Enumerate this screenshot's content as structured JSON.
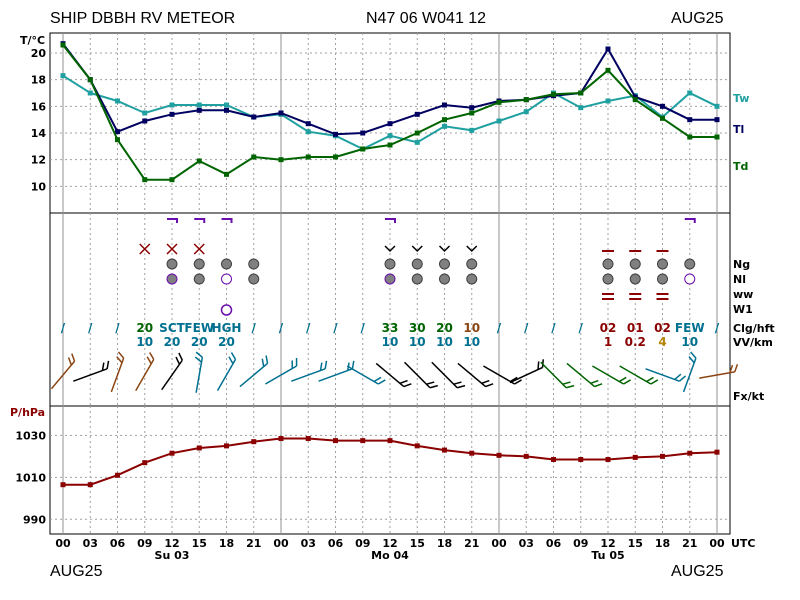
{
  "header": {
    "station": "SHIP DBBH RV METEOR",
    "position": "N47 06 W041 12",
    "month_left": "AUG25",
    "month_right": "AUG25",
    "footer_left": "AUG25",
    "footer_right": "AUG25"
  },
  "x_axis": {
    "hours": [
      "00",
      "03",
      "06",
      "09",
      "12",
      "15",
      "18",
      "21",
      "00",
      "03",
      "06",
      "09",
      "12",
      "15",
      "18",
      "21",
      "00",
      "03",
      "06",
      "09",
      "12",
      "15",
      "18",
      "21",
      "00"
    ],
    "utc_label": "UTC",
    "days": [
      {
        "label": "Su 03",
        "index": 4
      },
      {
        "label": "Mo 04",
        "index": 12
      },
      {
        "label": "Tu 05",
        "index": 20
      }
    ]
  },
  "temp_panel": {
    "unit_label": "T/°C",
    "yticks": [
      "20",
      "18",
      "16",
      "14",
      "12",
      "10"
    ],
    "legend": {
      "tw": "Tw",
      "tl": "Tl",
      "td": "Td"
    }
  },
  "middle_panel": {
    "row_labels": [
      "Ng",
      "Nl",
      "ww",
      "W1",
      "Clg/hft",
      "VV/km",
      "Fx/kt"
    ],
    "clg_row": [
      {
        "i": 0,
        "text": "/",
        "color": "#007090"
      },
      {
        "i": 1,
        "text": "/",
        "color": "#007090"
      },
      {
        "i": 2,
        "text": "/",
        "color": "#007090"
      },
      {
        "i": 3,
        "text": "20",
        "color": "#006400"
      },
      {
        "i": 4,
        "text": "SCT",
        "color": "#007090"
      },
      {
        "i": 5,
        "text": "FEW",
        "color": "#007090"
      },
      {
        "i": 6,
        "text": "HGH",
        "color": "#007090"
      },
      {
        "i": 7,
        "text": "/",
        "color": "#007090"
      },
      {
        "i": 8,
        "text": "/",
        "color": "#007090"
      },
      {
        "i": 9,
        "text": "/",
        "color": "#007090"
      },
      {
        "i": 10,
        "text": "/",
        "color": "#007090"
      },
      {
        "i": 11,
        "text": "/",
        "color": "#007090"
      },
      {
        "i": 12,
        "text": "33",
        "color": "#006400"
      },
      {
        "i": 13,
        "text": "30",
        "color": "#006400"
      },
      {
        "i": 14,
        "text": "20",
        "color": "#006400"
      },
      {
        "i": 15,
        "text": "10",
        "color": "#8b4513"
      },
      {
        "i": 16,
        "text": "/",
        "color": "#007090"
      },
      {
        "i": 17,
        "text": "/",
        "color": "#007090"
      },
      {
        "i": 18,
        "text": "/",
        "color": "#007090"
      },
      {
        "i": 19,
        "text": "/",
        "color": "#007090"
      },
      {
        "i": 20,
        "text": "02",
        "color": "#8b0000"
      },
      {
        "i": 21,
        "text": "01",
        "color": "#8b0000"
      },
      {
        "i": 22,
        "text": "02",
        "color": "#8b0000"
      },
      {
        "i": 23,
        "text": "FEW",
        "color": "#007090"
      },
      {
        "i": 24,
        "text": "/",
        "color": "#007090"
      }
    ],
    "vv_row": [
      {
        "i": 3,
        "text": "10",
        "color": "#007090"
      },
      {
        "i": 4,
        "text": "20",
        "color": "#007090"
      },
      {
        "i": 5,
        "text": "20",
        "color": "#007090"
      },
      {
        "i": 6,
        "text": "20",
        "color": "#007090"
      },
      {
        "i": 12,
        "text": "10",
        "color": "#007090"
      },
      {
        "i": 13,
        "text": "10",
        "color": "#007090"
      },
      {
        "i": 14,
        "text": "10",
        "color": "#007090"
      },
      {
        "i": 15,
        "text": "10",
        "color": "#007090"
      },
      {
        "i": 20,
        "text": "1",
        "color": "#8b0000"
      },
      {
        "i": 21,
        "text": "0.2",
        "color": "#8b0000"
      },
      {
        "i": 22,
        "text": "4",
        "color": "#b8860b"
      },
      {
        "i": 23,
        "text": "10",
        "color": "#007090"
      }
    ]
  },
  "pressure_panel": {
    "unit_label": "P/hPa",
    "yticks": [
      "1030",
      "1010",
      "990"
    ]
  },
  "colors": {
    "tw": "#20a0a0",
    "tl": "#000060",
    "td": "#006400",
    "pressure": "#8b0000",
    "grid": "#a0a0a0",
    "axis_text_red": "#8b0000",
    "cloud_fill": "#808080",
    "ww_blue": "#6a0dad"
  },
  "chart_data": {
    "type": "line",
    "title": "SHIP DBBH RV METEOR",
    "x": [
      "Sun 03 00",
      "03",
      "06",
      "09",
      "12",
      "15",
      "18",
      "21",
      "Mon 04 00",
      "03",
      "06",
      "09",
      "12",
      "15",
      "18",
      "21",
      "Tue 05 00",
      "03",
      "06",
      "09",
      "12",
      "15",
      "18",
      "21",
      "Wed 06 00"
    ],
    "series": [
      {
        "name": "Tw",
        "panel": "temperature",
        "values": [
          18.3,
          17.0,
          16.4,
          15.5,
          16.1,
          16.1,
          16.1,
          15.2,
          15.4,
          14.1,
          13.8,
          12.8,
          13.8,
          13.3,
          14.5,
          14.2,
          14.9,
          15.6,
          17.0,
          15.9,
          16.4,
          16.8,
          15.2,
          17.0,
          16.0
        ]
      },
      {
        "name": "Tl",
        "panel": "temperature",
        "values": [
          20.7,
          18.0,
          14.1,
          14.9,
          15.4,
          15.7,
          15.7,
          15.2,
          15.5,
          14.7,
          13.9,
          14.0,
          14.7,
          15.4,
          16.1,
          15.9,
          16.4,
          16.5,
          16.8,
          17.0,
          20.3,
          16.7,
          16.0,
          15.0,
          15.0
        ]
      },
      {
        "name": "Td",
        "panel": "temperature",
        "values": [
          20.6,
          18.0,
          13.5,
          10.5,
          10.5,
          11.9,
          10.9,
          12.2,
          12.0,
          12.2,
          12.2,
          12.8,
          13.1,
          14.0,
          15.0,
          15.5,
          16.3,
          16.5,
          16.9,
          17.0,
          18.7,
          16.5,
          15.1,
          13.7,
          13.7
        ]
      },
      {
        "name": "P",
        "panel": "pressure",
        "values": [
          1006.5,
          1006.5,
          1011,
          1017,
          1021.5,
          1024,
          1025,
          1027,
          1028.5,
          1028.5,
          1027.5,
          1027.5,
          1027.5,
          1025,
          1023,
          1021.5,
          1020.5,
          1020,
          1018.5,
          1018.5,
          1018.5,
          1019.5,
          1020,
          1021.5,
          1022
        ]
      }
    ],
    "ylabel_temperature": "T/°C",
    "ylim_temperature": [
      8,
      21.5
    ],
    "ylabel_pressure": "P/hPa",
    "ylim_pressure": [
      983,
      1044
    ],
    "xlabel": "UTC",
    "grid": true
  }
}
